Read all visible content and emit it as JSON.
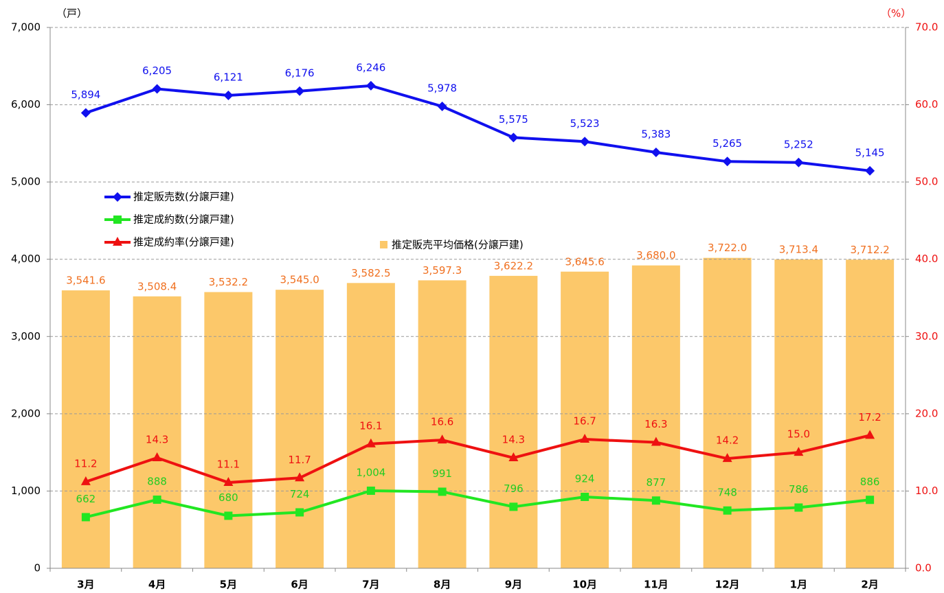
{
  "chart_data": {
    "type": "combo",
    "y_label": "（戸）",
    "y2_label": "（%）",
    "categories": [
      "3月",
      "4月",
      "5月",
      "6月",
      "7月",
      "8月",
      "9月",
      "10月",
      "11月",
      "12月",
      "1月",
      "2月"
    ],
    "ylim": [
      0,
      7000
    ],
    "yticks": [
      {
        "value": 0,
        "label": "0"
      },
      {
        "value": 1000,
        "label": "1,000"
      },
      {
        "value": 2000,
        "label": "2,000"
      },
      {
        "value": 3000,
        "label": "3,000"
      },
      {
        "value": 4000,
        "label": "4,000"
      },
      {
        "value": 5000,
        "label": "5,000"
      },
      {
        "value": 6000,
        "label": "6,000"
      },
      {
        "value": 7000,
        "label": "7,000"
      }
    ],
    "y2lim": [
      0,
      70
    ],
    "y2ticks": [
      {
        "value": 0,
        "label": "0.0"
      },
      {
        "value": 10,
        "label": "10.0"
      },
      {
        "value": 20,
        "label": "20.0"
      },
      {
        "value": 30,
        "label": "30.0"
      },
      {
        "value": 40,
        "label": "40.0"
      },
      {
        "value": 50,
        "label": "50.0"
      },
      {
        "value": 60,
        "label": "60.0"
      },
      {
        "value": 70,
        "label": "70.0"
      }
    ],
    "y3lim": [
      2000,
      5000
    ],
    "grid": true,
    "series": [
      {
        "name": "推定販売平均価格(分譲戸建)",
        "type": "bar",
        "axis": "y3",
        "color": "#fcc86a",
        "label_color": "#f07020",
        "values": [
          3541.6,
          3508.4,
          3532.2,
          3545.0,
          3582.5,
          3597.3,
          3622.2,
          3645.6,
          3680.0,
          3722.0,
          3713.4,
          3712.2
        ],
        "value_labels": [
          "3,541.6",
          "3,508.4",
          "3,532.2",
          "3,545.0",
          "3,582.5",
          "3,597.3",
          "3,622.2",
          "3,645.6",
          "3,680.0",
          "3,722.0",
          "3,713.4",
          "3,712.2"
        ]
      },
      {
        "name": "推定販売数(分譲戸建)",
        "type": "line",
        "marker": "diamond",
        "color": "#1010ee",
        "label_color": "#1010ee",
        "values": [
          5894,
          6205,
          6121,
          6176,
          6246,
          5978,
          5575,
          5523,
          5383,
          5265,
          5252,
          5145
        ],
        "value_labels": [
          "5,894",
          "6,205",
          "6,121",
          "6,176",
          "6,246",
          "5,978",
          "5,575",
          "5,523",
          "5,383",
          "5,265",
          "5,252",
          "5,145"
        ]
      },
      {
        "name": "推定成約数(分譲戸建)",
        "type": "line",
        "marker": "square",
        "color": "#22e622",
        "label_color": "#22cc22",
        "values": [
          662,
          888,
          680,
          724,
          1004,
          991,
          796,
          924,
          877,
          748,
          786,
          886
        ],
        "value_labels": [
          "662",
          "888",
          "680",
          "724",
          "1,004",
          "991",
          "796",
          "924",
          "877",
          "748",
          "786",
          "886"
        ]
      },
      {
        "name": "推定成約率(分譲戸建)",
        "type": "line",
        "marker": "triangle",
        "axis": "y2",
        "color": "#ee1111",
        "label_color": "#ee1111",
        "values": [
          11.2,
          14.3,
          11.1,
          11.7,
          16.1,
          16.6,
          14.3,
          16.7,
          16.3,
          14.2,
          15.0,
          17.2
        ],
        "value_labels": [
          "11.2",
          "14.3",
          "11.1",
          "11.7",
          "16.1",
          "16.6",
          "14.3",
          "16.7",
          "16.3",
          "14.2",
          "15.0",
          "17.2"
        ]
      }
    ]
  }
}
